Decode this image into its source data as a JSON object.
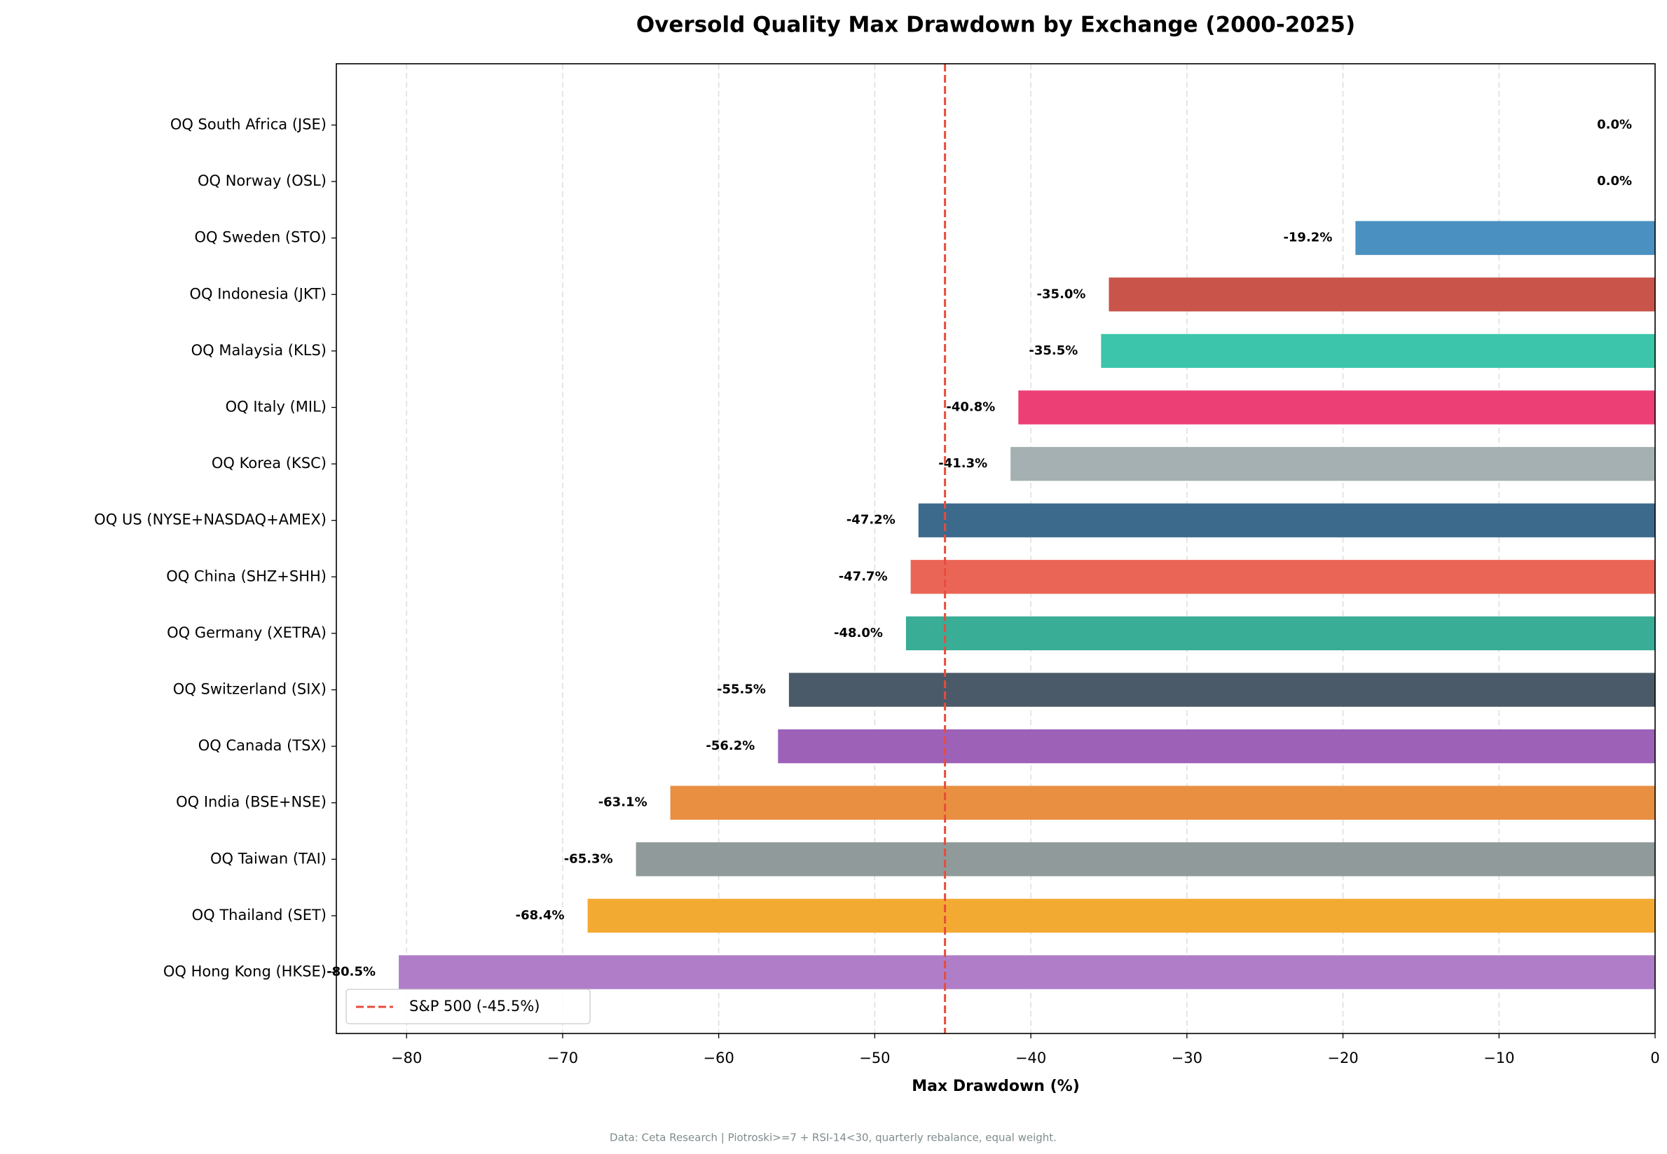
{
  "chart_data": {
    "type": "hbar",
    "title": "Oversold Quality Max Drawdown by Exchange (2000-2025)",
    "xlabel": "Max Drawdown (%)",
    "footnote": "Data: Ceta Research | Piotroski>=7 + RSI-14<30, quarterly rebalance, equal weight.",
    "categories": [
      "OQ South Africa (JSE)",
      "OQ Norway (OSL)",
      "OQ Sweden (STO)",
      "OQ Indonesia (JKT)",
      "OQ Malaysia (KLS)",
      "OQ Italy (MIL)",
      "OQ Korea (KSC)",
      "OQ US (NYSE+NASDAQ+AMEX)",
      "OQ China (SHZ+SHH)",
      "OQ Germany (XETRA)",
      "OQ Switzerland (SIX)",
      "OQ Canada (TSX)",
      "OQ India (BSE+NSE)",
      "OQ Taiwan (TAI)",
      "OQ Thailand (SET)",
      "OQ Hong Kong (HKSE)"
    ],
    "values": [
      0,
      0,
      -19.2,
      -35.0,
      -35.5,
      -40.8,
      -41.3,
      -47.2,
      -47.7,
      -48.0,
      -55.5,
      -56.2,
      -63.1,
      -65.3,
      -68.4,
      -80.5
    ],
    "value_labels": [
      "0.0%",
      "0.0%",
      "-19.2%",
      "-35.0%",
      "-35.5%",
      "-40.8%",
      "-41.3%",
      "-47.2%",
      "-47.7%",
      "-48.0%",
      "-55.5%",
      "-56.2%",
      "-63.1%",
      "-65.3%",
      "-68.4%",
      "-80.5%"
    ],
    "colors": [
      null,
      null,
      "#4a90c0",
      "#c9554a",
      "#3cc5aa",
      "#ec3f75",
      "#a4b0b1",
      "#3c6a8c",
      "#eb6556",
      "#39ad95",
      "#4b5a69",
      "#9d61b8",
      "#e98f41",
      "#909a9a",
      "#f3aa33",
      "#b07ec8"
    ],
    "xlim": [
      -84.5,
      0
    ],
    "xticks": [
      {
        "value": -80,
        "label": "−80"
      },
      {
        "value": -70,
        "label": "−70"
      },
      {
        "value": -60,
        "label": "−60"
      },
      {
        "value": -50,
        "label": "−50"
      },
      {
        "value": -40,
        "label": "−40"
      },
      {
        "value": -30,
        "label": "−30"
      },
      {
        "value": -20,
        "label": "−20"
      },
      {
        "value": -10,
        "label": "−10"
      },
      0
    ],
    "grid": true,
    "reference": {
      "value": -45.5,
      "label": "S&P 500 (-45.5%)",
      "color": "#e74c3c"
    },
    "legend": "lower left"
  }
}
